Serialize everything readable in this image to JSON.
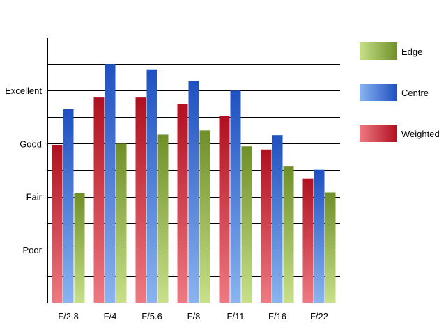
{
  "chart_data": {
    "type": "bar",
    "categories": [
      "F/2.8",
      "F/4",
      "F/5.6",
      "F/8",
      "F/11",
      "F/16",
      "F/22"
    ],
    "y_tick_labels": [
      "Poor",
      "Fair",
      "Good",
      "Excellent"
    ],
    "y_tick_values": [
      1,
      2,
      3,
      4
    ],
    "ylim": [
      0,
      5
    ],
    "grid": true,
    "legend_position": "right",
    "series": [
      {
        "name": "Weighted",
        "color": "#c0182a",
        "values": [
          2.98,
          3.87,
          3.87,
          3.75,
          3.52,
          2.89,
          2.34
        ]
      },
      {
        "name": "Centre",
        "color": "#2a5cc8",
        "values": [
          3.65,
          4.5,
          4.4,
          4.18,
          4.0,
          3.16,
          2.51
        ]
      },
      {
        "name": "Edge",
        "color": "#7a9a30",
        "values": [
          2.07,
          3.0,
          3.17,
          3.25,
          2.95,
          2.57,
          2.08
        ]
      }
    ],
    "legend_order": [
      "Edge",
      "Centre",
      "Weighted"
    ]
  }
}
